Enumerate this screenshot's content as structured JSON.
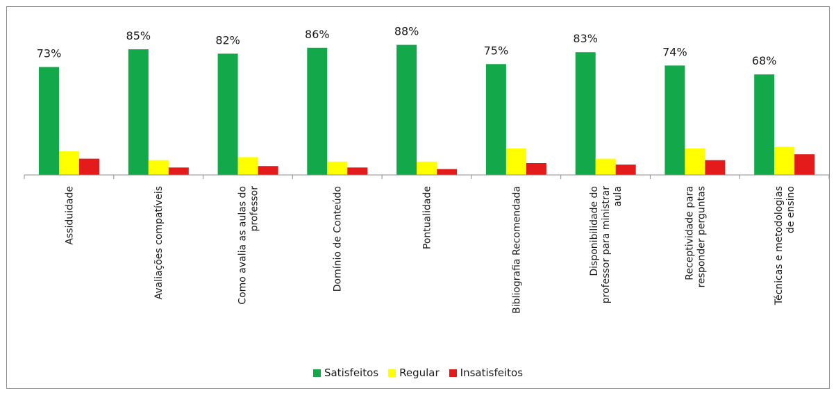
{
  "chart_data": {
    "type": "bar",
    "categories": [
      "Assiduidade",
      "Avaliações compatíveis",
      "Como avalia as aulas do professor",
      "Domínio de Conteúdo",
      "Pontualidade",
      "Bibliografia Recomendada",
      "Disponibilidade do professor para ministrar aula",
      "Receptividade para responder perguntas",
      "Técnicas e metodologias de ensino"
    ],
    "series": [
      {
        "name": "Satisfeitos",
        "color": "#13a84a",
        "values": [
          73,
          85,
          82,
          86,
          88,
          75,
          83,
          74,
          68
        ]
      },
      {
        "name": "Regular",
        "color": "#ffff00",
        "values": [
          16,
          10,
          12,
          9,
          9,
          18,
          11,
          18,
          19
        ]
      },
      {
        "name": "Insatisfeitos",
        "color": "#e31b1b",
        "values": [
          11,
          5,
          6,
          5,
          4,
          8,
          7,
          10,
          14
        ]
      }
    ],
    "data_labels": [
      "73%",
      "85%",
      "82%",
      "86%",
      "88%",
      "75%",
      "83%",
      "74%",
      "68%"
    ],
    "ylim": [
      0,
      100
    ],
    "grid": false,
    "legend_position": "bottom"
  }
}
